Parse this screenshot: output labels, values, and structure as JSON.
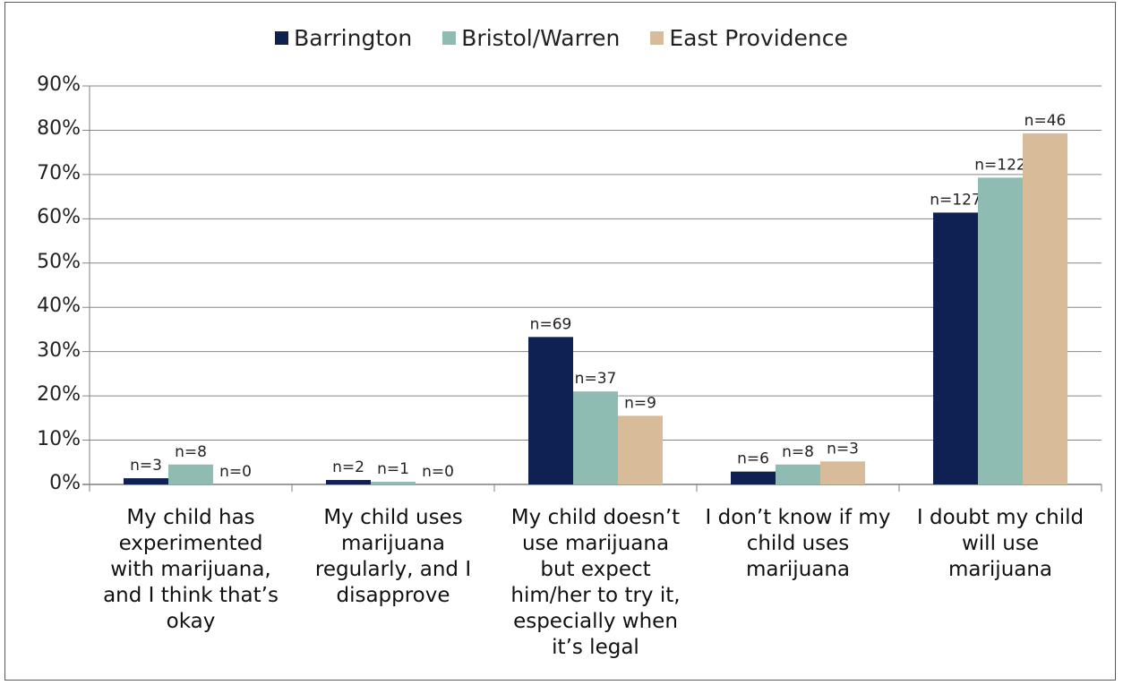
{
  "chart_data": {
    "type": "bar",
    "title": "",
    "xlabel": "",
    "ylabel": "",
    "ylim": [
      0,
      90
    ],
    "ytick_step": 10,
    "ytick_labels": [
      "0%",
      "10%",
      "20%",
      "30%",
      "40%",
      "50%",
      "60%",
      "70%",
      "80%",
      "90%"
    ],
    "grid": true,
    "legend_position": "top-center",
    "categories": [
      "My child has experimented with marijuana, and I think that’s okay",
      "My child uses marijuana regularly, and I disapprove",
      "My child doesn’t use marijuana but expect him/her to try it, especially when it’s legal",
      "I don’t know if my child uses marijuana",
      "I doubt my child will use marijuana"
    ],
    "series": [
      {
        "name": "Barrington",
        "color": "#0f2152",
        "values": [
          1.4,
          1.0,
          33.3,
          2.9,
          61.4
        ],
        "labels": [
          "n=3",
          "n=2",
          "n=69",
          "n=6",
          "n=127"
        ]
      },
      {
        "name": "Bristol/Warren",
        "color": "#8fbcb2",
        "values": [
          4.5,
          0.6,
          21.0,
          4.5,
          69.3
        ],
        "labels": [
          "n=8",
          "n=1",
          "n=37",
          "n=8",
          "n=122"
        ]
      },
      {
        "name": "East Providence",
        "color": "#d8bc9a",
        "values": [
          0,
          0,
          15.5,
          5.2,
          79.3
        ],
        "labels": [
          "n=0",
          "n=0",
          "n=9",
          "n=3",
          "n=46"
        ]
      }
    ]
  }
}
